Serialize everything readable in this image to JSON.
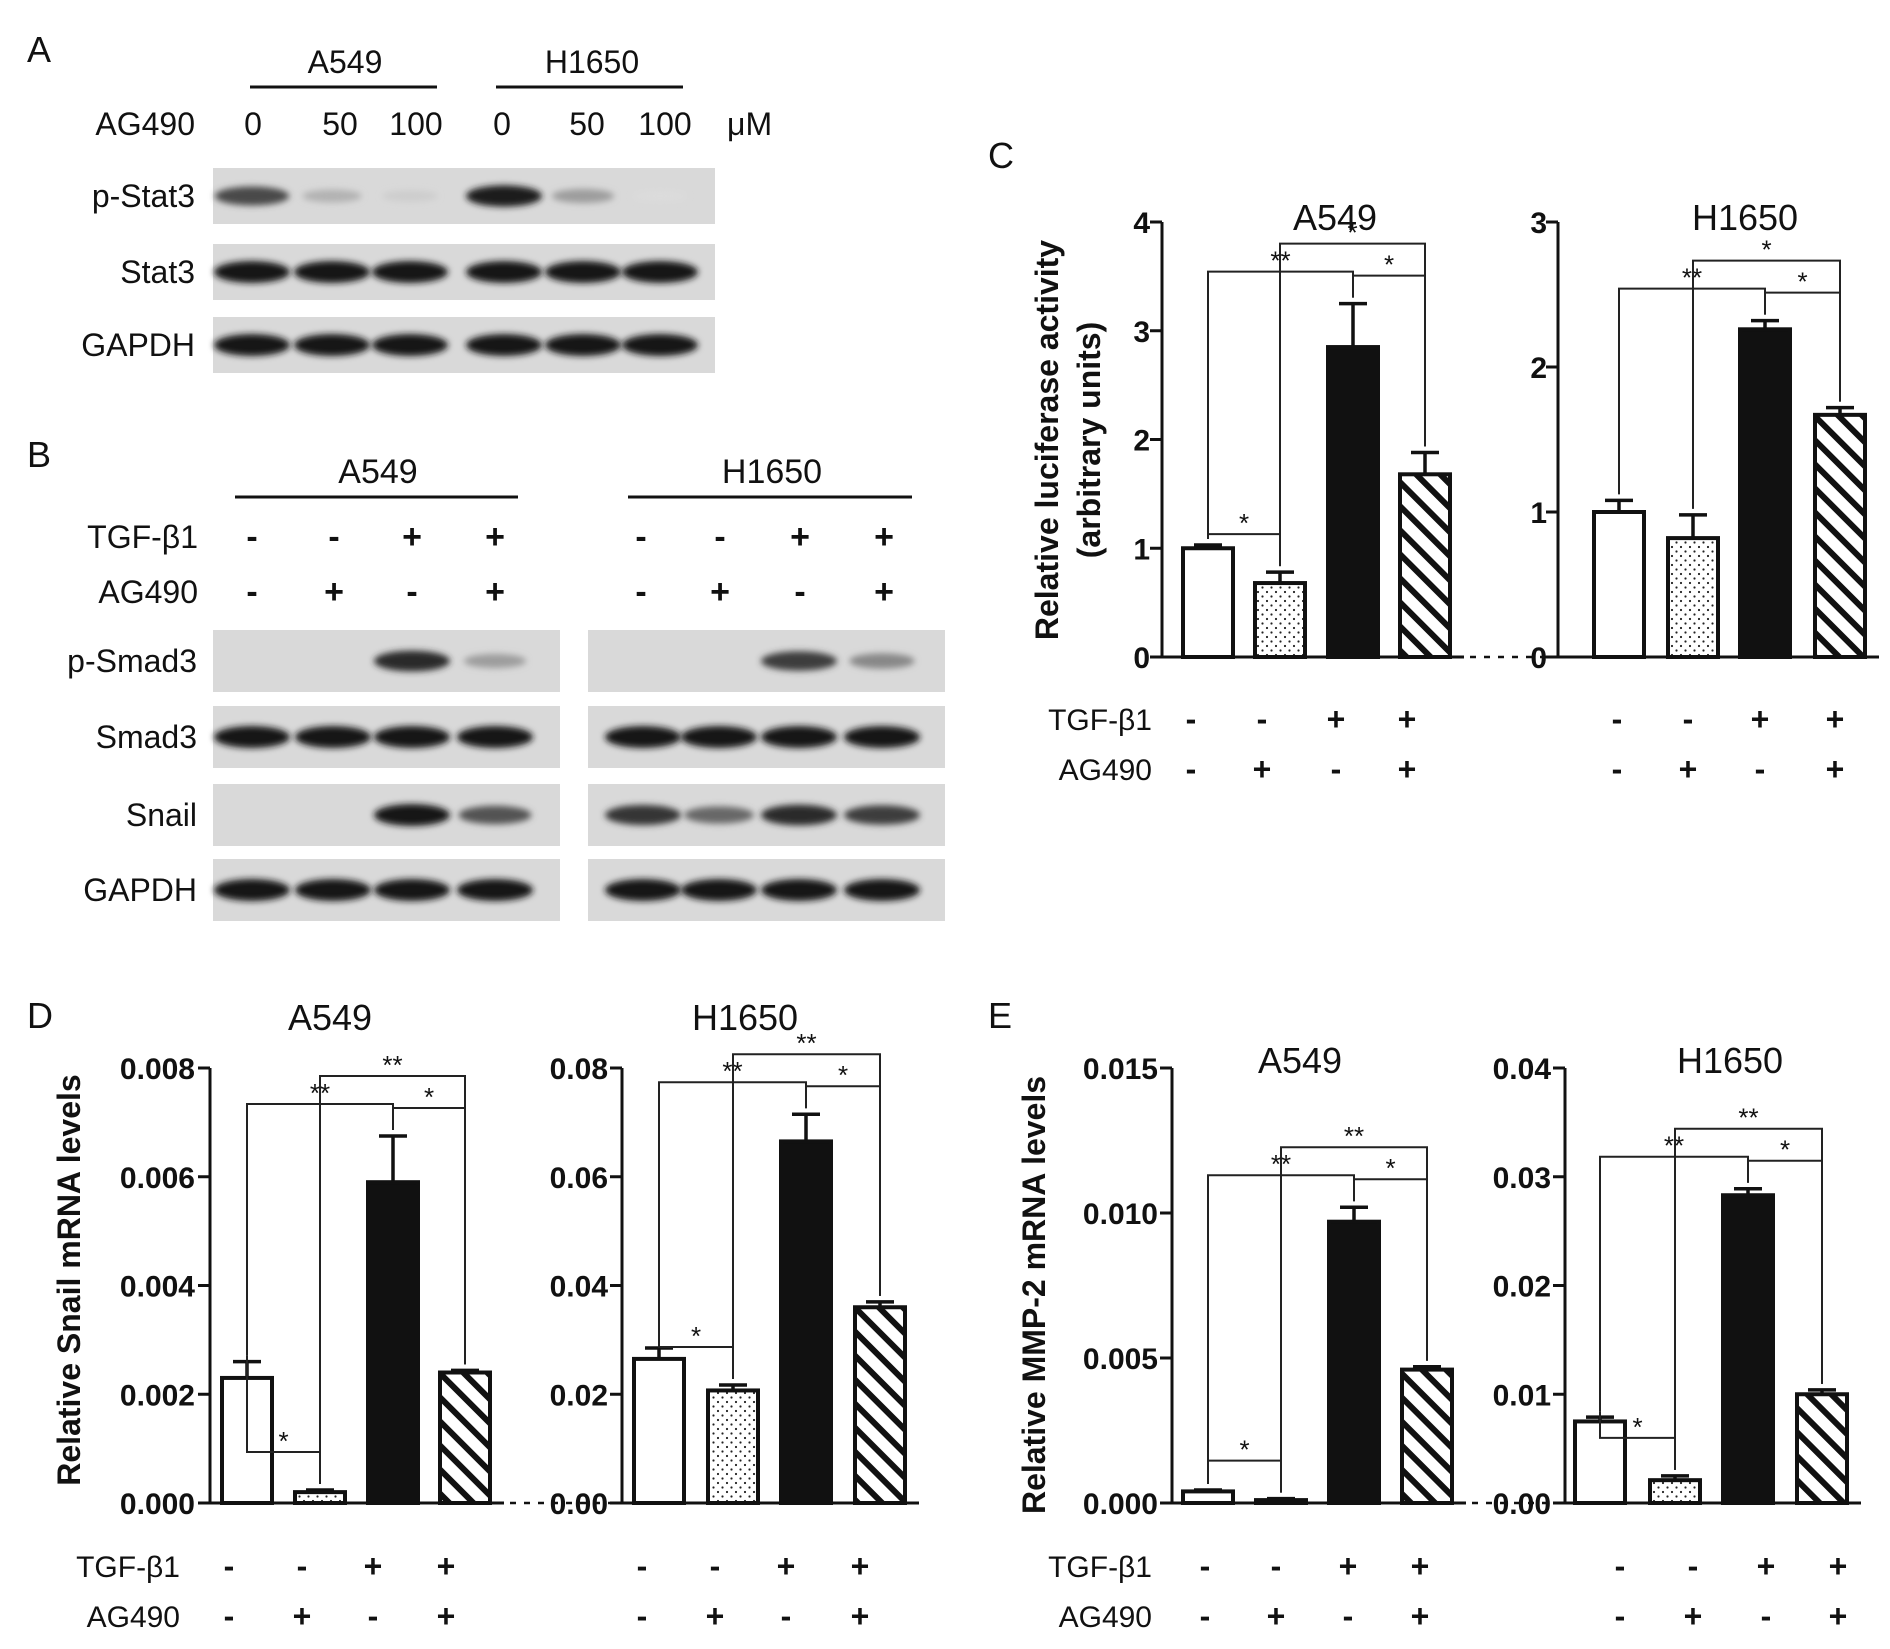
{
  "panels": {
    "A": {
      "letter": "A",
      "groups": [
        "A549",
        "H1650"
      ],
      "treatment": "AG490",
      "doses": [
        "0",
        "50",
        "100",
        "0",
        "50",
        "100"
      ],
      "unit": "μM",
      "rows": [
        "p-Stat3",
        "Stat3",
        "GAPDH"
      ],
      "band_intensity": {
        "p-Stat3": [
          0.75,
          0.25,
          0.12,
          0.95,
          0.35,
          0.05
        ],
        "Stat3": [
          1,
          1,
          1,
          1,
          1,
          1
        ],
        "GAPDH": [
          1,
          1,
          1,
          1,
          1,
          1
        ]
      }
    },
    "B": {
      "letter": "B",
      "groups": [
        "A549",
        "H1650"
      ],
      "row1_label": "TGF-β1",
      "row2_label": "AG490",
      "tgf": [
        "-",
        "-",
        "+",
        "+",
        "-",
        "-",
        "+",
        "+"
      ],
      "ag": [
        "-",
        "+",
        "-",
        "+",
        "-",
        "+",
        "-",
        "+"
      ],
      "rows": [
        "p-Smad3",
        "Smad3",
        "Snail",
        "GAPDH"
      ],
      "band_intensity": {
        "p-Smad3": [
          0,
          0,
          0.9,
          0.35,
          0,
          0,
          0.8,
          0.45
        ],
        "Smad3": [
          1,
          1,
          1,
          1,
          1,
          1,
          1,
          1
        ],
        "Snail": [
          0,
          0,
          1,
          0.7,
          0.85,
          0.6,
          0.9,
          0.8
        ],
        "GAPDH": [
          1,
          1,
          1,
          1,
          1,
          1,
          1,
          1
        ]
      }
    },
    "C": {
      "letter": "C",
      "ylabel_line1": "Relative luciferase activity",
      "ylabel_line2": "(arbitrary units)"
    },
    "D": {
      "letter": "D",
      "ylabel": "Relative Snail mRNA levels"
    },
    "E": {
      "letter": "E",
      "ylabel": "Relative MMP-2 mRNA levels"
    }
  },
  "treatment_labels": {
    "tgf": "TGF-β1",
    "ag": "AG490"
  },
  "treatment_signs": {
    "tgf": [
      "-",
      "-",
      "+",
      "+"
    ],
    "ag": [
      "-",
      "+",
      "-",
      "+"
    ]
  },
  "sig": {
    "one": "*",
    "two": "**"
  },
  "chart_data": [
    {
      "panel": "C",
      "type": "bar",
      "title": "A549",
      "ylim": [
        0,
        4
      ],
      "yticks": [
        "0",
        "1",
        "2",
        "3",
        "4"
      ],
      "values": [
        1.0,
        0.68,
        2.85,
        1.68
      ],
      "errors": [
        0.03,
        0.1,
        0.4,
        0.2
      ],
      "sig": [
        {
          "a": 0,
          "b": 1,
          "label": "*"
        },
        {
          "a": 0,
          "b": 2,
          "label": "**"
        },
        {
          "a": 1,
          "b": 3,
          "label": "*"
        },
        {
          "a": 2,
          "b": 3,
          "label": "*"
        }
      ]
    },
    {
      "panel": "C",
      "type": "bar",
      "title": "H1650",
      "ylim": [
        0,
        3
      ],
      "yticks": [
        "0",
        "1",
        "2",
        "3"
      ],
      "values": [
        1.0,
        0.82,
        2.26,
        1.67
      ],
      "errors": [
        0.08,
        0.16,
        0.06,
        0.05
      ],
      "sig": [
        {
          "a": 0,
          "b": 2,
          "label": "**"
        },
        {
          "a": 1,
          "b": 3,
          "label": "*"
        },
        {
          "a": 2,
          "b": 3,
          "label": "*"
        }
      ]
    },
    {
      "panel": "D",
      "type": "bar",
      "title": "A549",
      "ylim": [
        0,
        0.008
      ],
      "yticks": [
        "0.000",
        "0.002",
        "0.004",
        "0.006",
        "0.008"
      ],
      "values": [
        0.0023,
        0.0002,
        0.0059,
        0.0024
      ],
      "errors": [
        0.0003,
        4e-05,
        0.00085,
        4e-05
      ],
      "sig": [
        {
          "a": 0,
          "b": 1,
          "label": "*"
        },
        {
          "a": 0,
          "b": 2,
          "label": "**"
        },
        {
          "a": 1,
          "b": 3,
          "label": "**"
        },
        {
          "a": 2,
          "b": 3,
          "label": "*"
        }
      ]
    },
    {
      "panel": "D",
      "type": "bar",
      "title": "H1650",
      "ylim": [
        0,
        0.08
      ],
      "yticks": [
        "0.00",
        "0.02",
        "0.04",
        "0.06",
        "0.08"
      ],
      "values": [
        0.0265,
        0.0207,
        0.0665,
        0.036
      ],
      "errors": [
        0.002,
        0.001,
        0.005,
        0.001
      ],
      "sig": [
        {
          "a": 0,
          "b": 1,
          "label": "*"
        },
        {
          "a": 0,
          "b": 2,
          "label": "**"
        },
        {
          "a": 1,
          "b": 3,
          "label": "**"
        },
        {
          "a": 2,
          "b": 3,
          "label": "*"
        }
      ]
    },
    {
      "panel": "E",
      "type": "bar",
      "title": "A549",
      "ylim": [
        0,
        0.015
      ],
      "yticks": [
        "0.000",
        "0.005",
        "0.010",
        "0.015"
      ],
      "values": [
        0.0004,
        0.0001,
        0.0097,
        0.0046
      ],
      "errors": [
        5e-05,
        5e-05,
        0.0005,
        0.0001
      ],
      "sig": [
        {
          "a": 0,
          "b": 1,
          "label": "*"
        },
        {
          "a": 0,
          "b": 2,
          "label": "**"
        },
        {
          "a": 1,
          "b": 3,
          "label": "**"
        },
        {
          "a": 2,
          "b": 3,
          "label": "*"
        }
      ]
    },
    {
      "panel": "E",
      "type": "bar",
      "title": "H1650",
      "ylim": [
        0,
        0.04
      ],
      "yticks": [
        "0.00",
        "0.01",
        "0.02",
        "0.03",
        "0.04"
      ],
      "values": [
        0.0075,
        0.0021,
        0.0283,
        0.01
      ],
      "errors": [
        0.0004,
        0.0004,
        0.0006,
        0.0004
      ],
      "sig": [
        {
          "a": 0,
          "b": 1,
          "label": "*"
        },
        {
          "a": 0,
          "b": 2,
          "label": "**"
        },
        {
          "a": 1,
          "b": 3,
          "label": "**"
        },
        {
          "a": 2,
          "b": 3,
          "label": "*"
        }
      ]
    }
  ]
}
